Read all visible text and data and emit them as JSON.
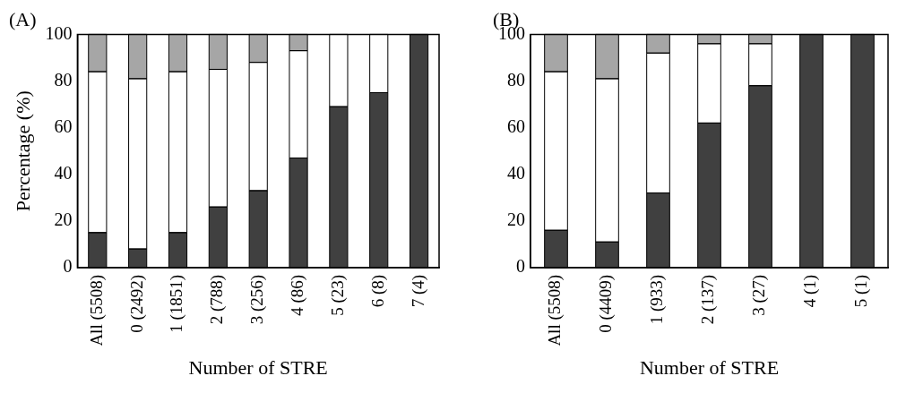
{
  "chart_data": [
    {
      "type": "bar",
      "title": "(A)",
      "xlabel": "Number of STRE",
      "ylabel": "Percentage (%)",
      "stacked": true,
      "grid": false,
      "legend": false,
      "categories": [
        "All (5508)",
        "0 (2492)",
        "1 (1851)",
        "2 (788)",
        "3 (256)",
        "4 (86)",
        "5 (23)",
        "6 (8)",
        "7 (4)"
      ],
      "ylim": [
        0,
        100
      ],
      "yticks": [
        0,
        20,
        40,
        60,
        80,
        100
      ],
      "series": [
        {
          "color": "#404040",
          "values": [
            15,
            8,
            15,
            26,
            33,
            47,
            69,
            75,
            100
          ]
        },
        {
          "color": "#ffffff",
          "values": [
            69,
            73,
            69,
            59,
            55,
            46,
            31,
            25,
            0
          ]
        },
        {
          "color": "#a6a6a6",
          "values": [
            16,
            19,
            16,
            15,
            12,
            7,
            0,
            0,
            0
          ]
        }
      ]
    },
    {
      "type": "bar",
      "title": "(B)",
      "xlabel": "Number of STRE",
      "stacked": true,
      "grid": false,
      "legend": false,
      "categories": [
        "All (5508)",
        "0 (4409)",
        "1 (933)",
        "2 (137)",
        "3 (27)",
        "4 (1)",
        "5 (1)"
      ],
      "ylim": [
        0,
        100
      ],
      "yticks": [
        0,
        20,
        40,
        60,
        80,
        100
      ],
      "series": [
        {
          "color": "#404040",
          "values": [
            16,
            11,
            32,
            62,
            78,
            100,
            100
          ]
        },
        {
          "color": "#ffffff",
          "values": [
            68,
            70,
            60,
            34,
            18,
            0,
            0
          ]
        },
        {
          "color": "#a6a6a6",
          "values": [
            16,
            19,
            8,
            4,
            4,
            0,
            0
          ]
        }
      ]
    }
  ]
}
